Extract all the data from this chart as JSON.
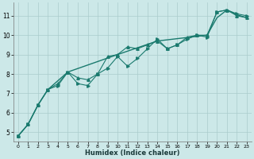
{
  "xlabel": "Humidex (Indice chaleur)",
  "bg_color": "#cce8e8",
  "line_color": "#1a7a6e",
  "grid_color": "#aacccc",
  "xlim": [
    -0.5,
    23.5
  ],
  "ylim": [
    4.5,
    11.7
  ],
  "yticks": [
    5,
    6,
    7,
    8,
    9,
    10,
    11
  ],
  "xticks": [
    0,
    1,
    2,
    3,
    4,
    5,
    6,
    7,
    8,
    9,
    10,
    11,
    12,
    13,
    14,
    15,
    16,
    17,
    18,
    19,
    20,
    21,
    22,
    23
  ],
  "series1_x": [
    0,
    1,
    2,
    3,
    4,
    5,
    6,
    7,
    8,
    9,
    10,
    11,
    12,
    13,
    14,
    15,
    16,
    17,
    18,
    19,
    20,
    21,
    22,
    23
  ],
  "series1_y": [
    4.8,
    5.4,
    6.4,
    7.2,
    7.5,
    8.1,
    7.8,
    7.7,
    8.0,
    8.9,
    9.0,
    9.4,
    9.3,
    9.5,
    9.7,
    9.3,
    9.5,
    9.9,
    10.0,
    10.0,
    11.2,
    11.3,
    11.0,
    10.9
  ],
  "series2_x": [
    0,
    1,
    2,
    3,
    4,
    5,
    6,
    7,
    8,
    9,
    10,
    11,
    12,
    13,
    14,
    15,
    16,
    17,
    18,
    19,
    20,
    21,
    22,
    23
  ],
  "series2_y": [
    4.8,
    5.4,
    6.4,
    7.2,
    7.4,
    8.1,
    7.5,
    7.4,
    8.0,
    8.3,
    8.9,
    8.4,
    8.8,
    9.3,
    9.8,
    9.3,
    9.5,
    9.8,
    10.0,
    9.9,
    11.2,
    11.3,
    11.1,
    11.0
  ],
  "series3_x": [
    0,
    1,
    2,
    3,
    5,
    10,
    14,
    19,
    20,
    21,
    22,
    23
  ],
  "series3_y": [
    4.8,
    5.4,
    6.4,
    7.2,
    8.1,
    9.0,
    9.7,
    10.0,
    10.9,
    11.3,
    11.05,
    10.9
  ],
  "marker_size": 2.5,
  "line_width": 0.8
}
